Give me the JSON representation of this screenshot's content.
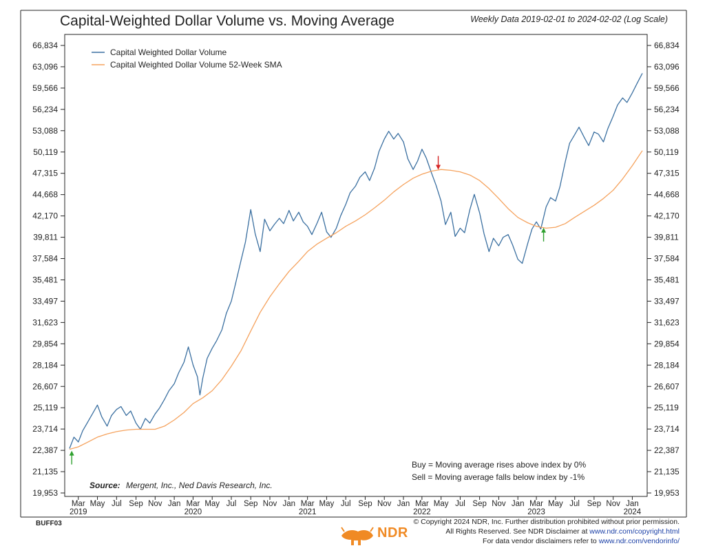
{
  "header": {
    "title": "Capital-Weighted Dollar Volume vs. Moving Average",
    "subtitle": "Weekly Data 2019-02-01 to 2024-02-02 (Log Scale)"
  },
  "code": "BUFF03",
  "footer": {
    "line1": "© Copyright 2024 NDR, Inc. Further distribution prohibited without prior permission.",
    "line2_prefix": "All Rights Reserved. See NDR Disclaimer at ",
    "line2_link": "www.ndr.com/copyright.html",
    "line3_prefix": "For data vendor disclaimers refer to ",
    "line3_link": "www.ndr.com/vendorinfo/",
    "logo_text": "NDR"
  },
  "colors": {
    "index_line": "#3a6fa0",
    "sma_line": "#f5a25d",
    "buy_arrow": "#2ea02e",
    "sell_arrow": "#d62424",
    "axis": "#222222",
    "logo": "#f08a24"
  },
  "chart_data": {
    "type": "line",
    "title": "Capital-Weighted Dollar Volume vs. Moving Average",
    "subtitle": "Weekly Data 2019-02-01 to 2024-02-02 (Log Scale)",
    "y_scale": "log",
    "ylim": [
      19953,
      66834
    ],
    "y_ticks": [
      19953,
      21135,
      22387,
      23714,
      25119,
      26607,
      28184,
      29854,
      31623,
      33497,
      35481,
      37584,
      39811,
      42170,
      44668,
      47315,
      50119,
      53088,
      56234,
      59566,
      63096,
      66834
    ],
    "y_tick_labels": [
      "19,953",
      "21,135",
      "22,387",
      "23,714",
      "25,119",
      "26,607",
      "28,184",
      "29,854",
      "31,623",
      "33,497",
      "35,481",
      "37,584",
      "39,811",
      "42,170",
      "44,668",
      "47,315",
      "50,119",
      "53,088",
      "56,234",
      "59,566",
      "63,096",
      "66,834"
    ],
    "xlim": [
      "2019-02-01",
      "2024-02-02"
    ],
    "x_ticks": [
      {
        "date": "2019-03-01",
        "label": "Mar"
      },
      {
        "date": "2019-05-01",
        "label": "May"
      },
      {
        "date": "2019-07-01",
        "label": "Jul"
      },
      {
        "date": "2019-09-01",
        "label": "Sep"
      },
      {
        "date": "2019-11-01",
        "label": "Nov"
      },
      {
        "date": "2020-01-01",
        "label": "Jan"
      },
      {
        "date": "2020-03-01",
        "label": "Mar"
      },
      {
        "date": "2020-05-01",
        "label": "May"
      },
      {
        "date": "2020-07-01",
        "label": "Jul"
      },
      {
        "date": "2020-09-01",
        "label": "Sep"
      },
      {
        "date": "2020-11-01",
        "label": "Nov"
      },
      {
        "date": "2021-01-01",
        "label": "Jan"
      },
      {
        "date": "2021-03-01",
        "label": "Mar"
      },
      {
        "date": "2021-05-01",
        "label": "May"
      },
      {
        "date": "2021-07-01",
        "label": "Jul"
      },
      {
        "date": "2021-09-01",
        "label": "Sep"
      },
      {
        "date": "2021-11-01",
        "label": "Nov"
      },
      {
        "date": "2022-01-01",
        "label": "Jan"
      },
      {
        "date": "2022-03-01",
        "label": "Mar"
      },
      {
        "date": "2022-05-01",
        "label": "May"
      },
      {
        "date": "2022-07-01",
        "label": "Jul"
      },
      {
        "date": "2022-09-01",
        "label": "Sep"
      },
      {
        "date": "2022-11-01",
        "label": "Nov"
      },
      {
        "date": "2023-01-01",
        "label": "Jan"
      },
      {
        "date": "2023-03-01",
        "label": "Mar"
      },
      {
        "date": "2023-05-01",
        "label": "May"
      },
      {
        "date": "2023-07-01",
        "label": "Jul"
      },
      {
        "date": "2023-09-01",
        "label": "Sep"
      },
      {
        "date": "2023-11-01",
        "label": "Nov"
      },
      {
        "date": "2024-01-01",
        "label": "Jan"
      }
    ],
    "year_labels": [
      {
        "date": "2019-03-01",
        "label": "2019"
      },
      {
        "date": "2020-03-01",
        "label": "2020"
      },
      {
        "date": "2021-03-01",
        "label": "2021"
      },
      {
        "date": "2022-03-01",
        "label": "2022"
      },
      {
        "date": "2023-03-01",
        "label": "2023"
      },
      {
        "date": "2024-01-01",
        "label": "2024"
      }
    ],
    "legend_position": "top-left",
    "grid": false,
    "series": [
      {
        "name": "Capital Weighted Dollar Volume",
        "points": [
          [
            "2019-02-01",
            22500
          ],
          [
            "2019-02-15",
            23200
          ],
          [
            "2019-03-01",
            22900
          ],
          [
            "2019-03-15",
            23600
          ],
          [
            "2019-04-01",
            24200
          ],
          [
            "2019-04-15",
            24700
          ],
          [
            "2019-05-01",
            25300
          ],
          [
            "2019-05-15",
            24500
          ],
          [
            "2019-06-01",
            23900
          ],
          [
            "2019-06-15",
            24600
          ],
          [
            "2019-07-01",
            25000
          ],
          [
            "2019-07-15",
            25200
          ],
          [
            "2019-08-01",
            24600
          ],
          [
            "2019-08-15",
            24900
          ],
          [
            "2019-09-01",
            24100
          ],
          [
            "2019-09-15",
            23700
          ],
          [
            "2019-10-01",
            24400
          ],
          [
            "2019-10-15",
            24100
          ],
          [
            "2019-11-01",
            24700
          ],
          [
            "2019-11-15",
            25100
          ],
          [
            "2019-12-01",
            25700
          ],
          [
            "2019-12-15",
            26300
          ],
          [
            "2020-01-01",
            26800
          ],
          [
            "2020-01-15",
            27600
          ],
          [
            "2020-02-01",
            28400
          ],
          [
            "2020-02-15",
            29600
          ],
          [
            "2020-03-01",
            28200
          ],
          [
            "2020-03-15",
            27300
          ],
          [
            "2020-03-23",
            26000
          ],
          [
            "2020-04-01",
            27200
          ],
          [
            "2020-04-15",
            28700
          ],
          [
            "2020-05-01",
            29500
          ],
          [
            "2020-05-15",
            30100
          ],
          [
            "2020-06-01",
            31000
          ],
          [
            "2020-06-15",
            32400
          ],
          [
            "2020-07-01",
            33500
          ],
          [
            "2020-07-15",
            35200
          ],
          [
            "2020-08-01",
            37400
          ],
          [
            "2020-08-15",
            39300
          ],
          [
            "2020-09-01",
            42900
          ],
          [
            "2020-09-15",
            40200
          ],
          [
            "2020-10-01",
            38300
          ],
          [
            "2020-10-15",
            41800
          ],
          [
            "2020-11-01",
            40500
          ],
          [
            "2020-11-15",
            41200
          ],
          [
            "2020-12-01",
            41900
          ],
          [
            "2020-12-15",
            41300
          ],
          [
            "2021-01-01",
            42800
          ],
          [
            "2021-01-15",
            41600
          ],
          [
            "2021-02-01",
            42600
          ],
          [
            "2021-02-15",
            41500
          ],
          [
            "2021-03-01",
            41000
          ],
          [
            "2021-03-15",
            40100
          ],
          [
            "2021-04-01",
            41400
          ],
          [
            "2021-04-15",
            42600
          ],
          [
            "2021-05-01",
            40400
          ],
          [
            "2021-05-15",
            39800
          ],
          [
            "2021-06-01",
            40800
          ],
          [
            "2021-06-15",
            42200
          ],
          [
            "2021-07-01",
            43500
          ],
          [
            "2021-07-15",
            44900
          ],
          [
            "2021-08-01",
            45700
          ],
          [
            "2021-08-15",
            46800
          ],
          [
            "2021-09-01",
            47500
          ],
          [
            "2021-09-15",
            46400
          ],
          [
            "2021-10-01",
            48000
          ],
          [
            "2021-10-15",
            50200
          ],
          [
            "2021-11-01",
            51900
          ],
          [
            "2021-11-15",
            53000
          ],
          [
            "2021-12-01",
            51900
          ],
          [
            "2021-12-15",
            52700
          ],
          [
            "2022-01-01",
            51500
          ],
          [
            "2022-01-15",
            49200
          ],
          [
            "2022-02-01",
            47800
          ],
          [
            "2022-02-15",
            48900
          ],
          [
            "2022-03-01",
            50500
          ],
          [
            "2022-03-15",
            49300
          ],
          [
            "2022-04-01",
            47300
          ],
          [
            "2022-04-15",
            45800
          ],
          [
            "2022-05-01",
            43900
          ],
          [
            "2022-05-15",
            41200
          ],
          [
            "2022-06-01",
            42600
          ],
          [
            "2022-06-15",
            39900
          ],
          [
            "2022-07-01",
            40800
          ],
          [
            "2022-07-15",
            40300
          ],
          [
            "2022-08-01",
            42900
          ],
          [
            "2022-08-15",
            44700
          ],
          [
            "2022-09-01",
            42500
          ],
          [
            "2022-09-15",
            40200
          ],
          [
            "2022-10-01",
            38300
          ],
          [
            "2022-10-15",
            39700
          ],
          [
            "2022-11-01",
            38900
          ],
          [
            "2022-11-15",
            39800
          ],
          [
            "2022-12-01",
            40100
          ],
          [
            "2022-12-15",
            39000
          ],
          [
            "2023-01-01",
            37500
          ],
          [
            "2023-01-15",
            37100
          ],
          [
            "2023-02-01",
            39100
          ],
          [
            "2023-02-15",
            40700
          ],
          [
            "2023-03-01",
            41500
          ],
          [
            "2023-03-15",
            40700
          ],
          [
            "2023-04-01",
            43200
          ],
          [
            "2023-04-15",
            44300
          ],
          [
            "2023-05-01",
            43900
          ],
          [
            "2023-05-15",
            45600
          ],
          [
            "2023-06-01",
            48800
          ],
          [
            "2023-06-15",
            51300
          ],
          [
            "2023-07-01",
            52500
          ],
          [
            "2023-07-15",
            53600
          ],
          [
            "2023-08-01",
            52100
          ],
          [
            "2023-08-15",
            51000
          ],
          [
            "2023-09-01",
            52900
          ],
          [
            "2023-09-15",
            52600
          ],
          [
            "2023-10-01",
            51500
          ],
          [
            "2023-10-15",
            53400
          ],
          [
            "2023-11-01",
            55200
          ],
          [
            "2023-11-15",
            56900
          ],
          [
            "2023-12-01",
            58000
          ],
          [
            "2023-12-15",
            57300
          ],
          [
            "2024-01-01",
            58800
          ],
          [
            "2024-01-15",
            60200
          ],
          [
            "2024-02-02",
            62000
          ]
        ]
      },
      {
        "name": "Capital Weighted Dollar Volume 52-Week SMA",
        "points": [
          [
            "2019-02-01",
            22450
          ],
          [
            "2019-03-01",
            22600
          ],
          [
            "2019-04-01",
            22900
          ],
          [
            "2019-05-01",
            23200
          ],
          [
            "2019-06-01",
            23400
          ],
          [
            "2019-07-01",
            23550
          ],
          [
            "2019-08-01",
            23650
          ],
          [
            "2019-09-01",
            23700
          ],
          [
            "2019-10-01",
            23700
          ],
          [
            "2019-11-01",
            23700
          ],
          [
            "2019-12-01",
            23900
          ],
          [
            "2020-01-01",
            24300
          ],
          [
            "2020-02-01",
            24800
          ],
          [
            "2020-03-01",
            25400
          ],
          [
            "2020-04-01",
            25800
          ],
          [
            "2020-05-01",
            26300
          ],
          [
            "2020-06-01",
            27100
          ],
          [
            "2020-07-01",
            28100
          ],
          [
            "2020-08-01",
            29300
          ],
          [
            "2020-09-01",
            30900
          ],
          [
            "2020-10-01",
            32500
          ],
          [
            "2020-11-01",
            33900
          ],
          [
            "2020-12-01",
            35100
          ],
          [
            "2021-01-01",
            36300
          ],
          [
            "2021-02-01",
            37300
          ],
          [
            "2021-03-01",
            38300
          ],
          [
            "2021-04-01",
            39100
          ],
          [
            "2021-05-01",
            39700
          ],
          [
            "2021-06-01",
            40300
          ],
          [
            "2021-07-01",
            41000
          ],
          [
            "2021-08-01",
            41600
          ],
          [
            "2021-09-01",
            42300
          ],
          [
            "2021-10-01",
            43100
          ],
          [
            "2021-11-01",
            44000
          ],
          [
            "2021-12-01",
            45000
          ],
          [
            "2022-01-01",
            45900
          ],
          [
            "2022-02-01",
            46700
          ],
          [
            "2022-03-01",
            47200
          ],
          [
            "2022-04-01",
            47600
          ],
          [
            "2022-05-01",
            47800
          ],
          [
            "2022-06-01",
            47700
          ],
          [
            "2022-07-01",
            47500
          ],
          [
            "2022-08-01",
            47100
          ],
          [
            "2022-09-01",
            46400
          ],
          [
            "2022-10-01",
            45400
          ],
          [
            "2022-11-01",
            44200
          ],
          [
            "2022-12-01",
            43000
          ],
          [
            "2023-01-01",
            42000
          ],
          [
            "2023-02-01",
            41400
          ],
          [
            "2023-03-01",
            41000
          ],
          [
            "2023-04-01",
            40800
          ],
          [
            "2023-05-01",
            40900
          ],
          [
            "2023-06-01",
            41300
          ],
          [
            "2023-07-01",
            42000
          ],
          [
            "2023-08-01",
            42700
          ],
          [
            "2023-09-01",
            43400
          ],
          [
            "2023-10-01",
            44200
          ],
          [
            "2023-11-01",
            45200
          ],
          [
            "2023-12-01",
            46600
          ],
          [
            "2024-01-01",
            48300
          ],
          [
            "2024-02-02",
            50300
          ]
        ]
      }
    ],
    "signals": [
      {
        "type": "buy",
        "date": "2019-02-08",
        "value": 22450
      },
      {
        "type": "sell",
        "date": "2022-04-22",
        "value": 47600
      },
      {
        "type": "buy",
        "date": "2023-03-24",
        "value": 41000
      }
    ],
    "annotations": {
      "buy_rule": "Buy = Moving average rises above index by 0%",
      "sell_rule": "Sell = Moving average falls below index by -1%",
      "source_label": "Source:",
      "source_text": "Mergent, Inc., Ned Davis Research, Inc."
    }
  }
}
